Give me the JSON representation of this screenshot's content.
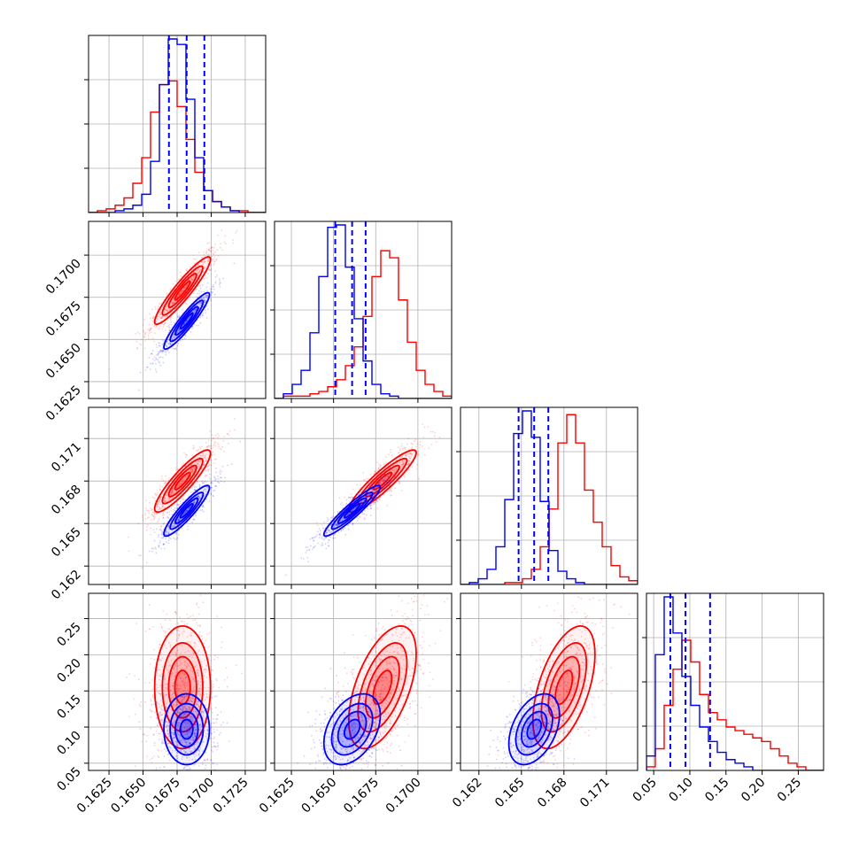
{
  "chart_data": {
    "type": "corner",
    "grid": true,
    "colors": {
      "series_a": "#ff0000",
      "series_b": "#0000ff"
    },
    "params": [
      {
        "range": [
          0.161,
          0.174
        ],
        "ticks": [
          0.1625,
          0.165,
          0.1675,
          0.17,
          0.1725
        ],
        "tick_labels": [
          "0.1625",
          "0.1650",
          "0.1675",
          "0.1700",
          "0.1725"
        ]
      },
      {
        "range": [
          0.1615,
          0.172
        ],
        "ticks": [
          0.1625,
          0.165,
          0.1675,
          0.17
        ],
        "tick_labels": [
          "0.1625",
          "0.1650",
          "0.1675",
          "0.1700"
        ]
      },
      {
        "range": [
          0.1607,
          0.1732
        ],
        "ticks": [
          0.162,
          0.165,
          0.168,
          0.171
        ],
        "tick_labels": [
          "0.162",
          "0.165",
          "0.168",
          "0.171"
        ]
      },
      {
        "range": [
          0.04,
          0.285
        ],
        "ticks": [
          0.05,
          0.1,
          0.15,
          0.2,
          0.25
        ],
        "tick_labels": [
          "0.05",
          "0.10",
          "0.15",
          "0.20",
          "0.25"
        ]
      }
    ],
    "series": [
      {
        "color": "#ff0000",
        "histograms": [
          [
            0,
            1,
            2,
            4,
            8,
            16,
            30,
            55,
            70,
            72,
            58,
            40,
            22,
            12,
            6,
            3,
            1,
            1,
            0,
            0
          ],
          [
            0,
            1,
            1,
            1,
            2,
            3,
            5,
            8,
            14,
            22,
            35,
            52,
            63,
            60,
            42,
            24,
            12,
            6,
            3,
            1
          ],
          [
            0,
            0,
            0,
            0,
            0,
            1,
            1,
            3,
            8,
            20,
            40,
            75,
            90,
            75,
            50,
            33,
            20,
            10,
            4,
            2
          ],
          [
            1,
            6,
            18,
            28,
            36,
            30,
            21,
            16,
            14,
            12,
            11,
            10,
            9,
            8,
            6,
            4,
            2,
            1,
            0,
            0
          ]
        ],
        "means": [
          0.1679,
          0.1679,
          0.168,
          0.155
        ],
        "cov": [
          [
            1.05e-06,
            9.5e-07,
            1e-06,
            0.0
          ],
          [
            9.5e-07,
            1e-06,
            1e-06,
            2.3e-05
          ],
          [
            1e-06,
            1e-06,
            1.2e-06,
            2.5e-05
          ],
          [
            0.0,
            2.3e-05,
            2.5e-05,
            0.0018
          ]
        ]
      },
      {
        "color": "#0000ff",
        "histograms": [
          [
            0,
            0,
            0,
            1,
            2,
            4,
            10,
            28,
            70,
            95,
            92,
            62,
            30,
            12,
            6,
            3,
            1,
            0,
            0,
            0
          ],
          [
            0,
            2,
            6,
            12,
            28,
            52,
            73,
            74,
            56,
            34,
            16,
            6,
            2,
            1,
            0,
            0,
            0,
            0,
            0,
            0
          ],
          [
            0,
            1,
            3,
            8,
            20,
            45,
            80,
            92,
            78,
            44,
            18,
            7,
            3,
            1,
            0,
            0,
            0,
            0,
            0,
            0
          ],
          [
            4,
            32,
            48,
            38,
            26,
            18,
            12,
            8,
            5,
            3,
            2,
            1,
            0,
            0,
            0,
            0,
            0,
            0,
            0,
            0
          ]
        ],
        "means": [
          0.1682,
          0.1661,
          0.1659,
          0.097
        ],
        "cov": [
          [
            7e-07,
            6.5e-07,
            6.8e-07,
            0.0
          ],
          [
            6.5e-07,
            7e-07,
            7e-07,
            8e-06
          ],
          [
            6.8e-07,
            7e-07,
            8e-07,
            9e-06
          ],
          [
            0.0,
            8e-06,
            9e-06,
            0.0006
          ]
        ]
      }
    ],
    "quantile_lines": [
      [
        0.1669,
        0.1682,
        0.1695
      ],
      [
        0.1651,
        0.1661,
        0.1669
      ],
      [
        0.1648,
        0.1659,
        0.1669
      ],
      [
        0.073,
        0.094,
        0.128
      ]
    ]
  }
}
